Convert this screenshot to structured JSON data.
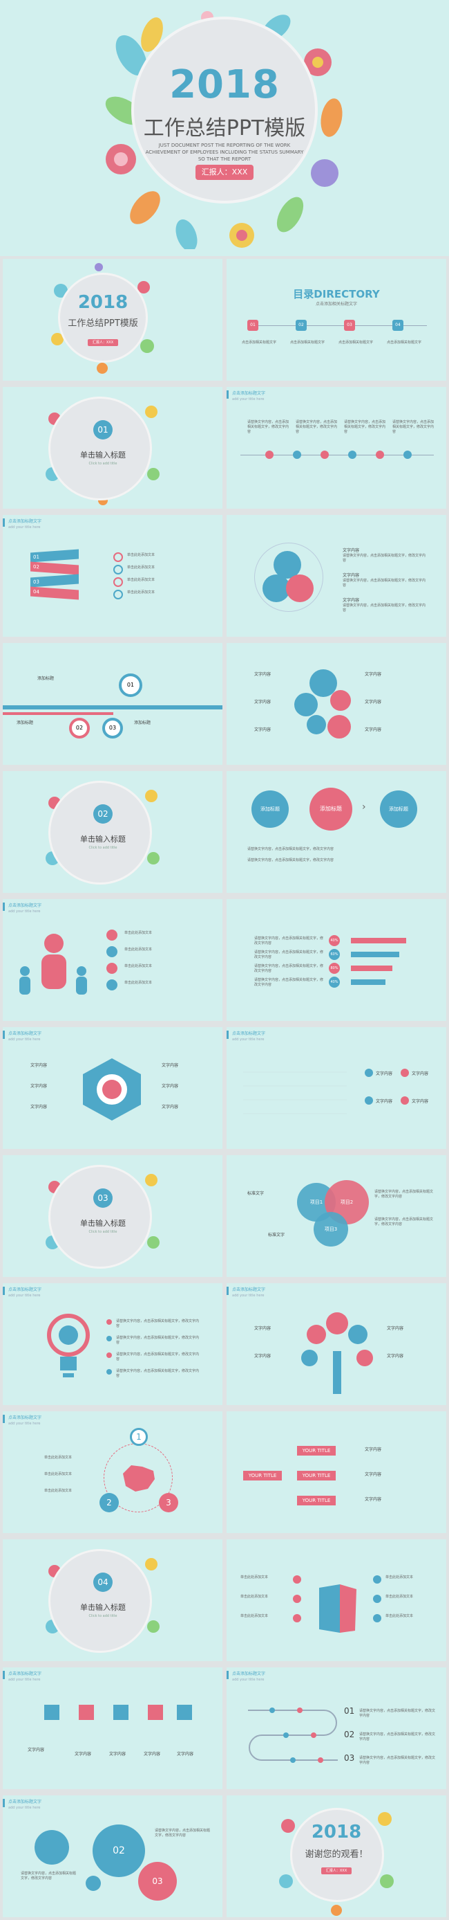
{
  "cover": {
    "year": "2018",
    "title": "工作总结PPT模版",
    "subtitle": "JUST DOCUMENT POST THE REPORTING OF THE WORK ACHIEVEMENT OF EMPLOYEES INCLUDING THE STATUS SUMMARY SO THAT THE REPORT",
    "reporter": "汇报人：XXX"
  },
  "common": {
    "corner_title": "点击添加标题文字",
    "corner_en": "add your title here",
    "small_text": "单击此处添加文本",
    "desc": "请替换文字内容，点击添加相关标题文字，修改文字内容",
    "text_content": "文字内容",
    "add_title": "添加标题",
    "click_title": "单击输入标题"
  },
  "toc": {
    "title": "目录DIRECTORY",
    "subtitle": "点击添加相关标题文字",
    "items": [
      "01",
      "02",
      "03",
      "04"
    ],
    "item_text": "点击添加相关标题文字"
  },
  "sections": [
    {
      "num": "01",
      "title": "单击输入标题",
      "en": "Click to add title"
    },
    {
      "num": "02",
      "title": "单击输入标题",
      "en": "Click to add title"
    },
    {
      "num": "03",
      "title": "单击输入标题",
      "en": "Click to add title"
    },
    {
      "num": "04",
      "title": "单击输入标题",
      "en": "Click to add title"
    }
  ],
  "ribbon_nums": [
    "01",
    "02",
    "03",
    "04"
  ],
  "circle_nums": [
    "01",
    "02",
    "03"
  ],
  "venn": {
    "a": "项目1",
    "b": "项目2",
    "c": "项目3",
    "label": "标准文字"
  },
  "china": {
    "nums": [
      "1",
      "2",
      "3"
    ]
  },
  "your_title": "YOUR TITLE",
  "timeline": {
    "nums": [
      "01",
      "02",
      "03"
    ]
  },
  "gears": {
    "nums": [
      "01",
      "02",
      "03"
    ]
  },
  "percents": [
    "40%",
    "60%",
    "80%",
    "40%"
  ],
  "closing": {
    "year": "2018",
    "thanks": "谢谢您的观看！",
    "reporter": "汇报人：XXX"
  }
}
